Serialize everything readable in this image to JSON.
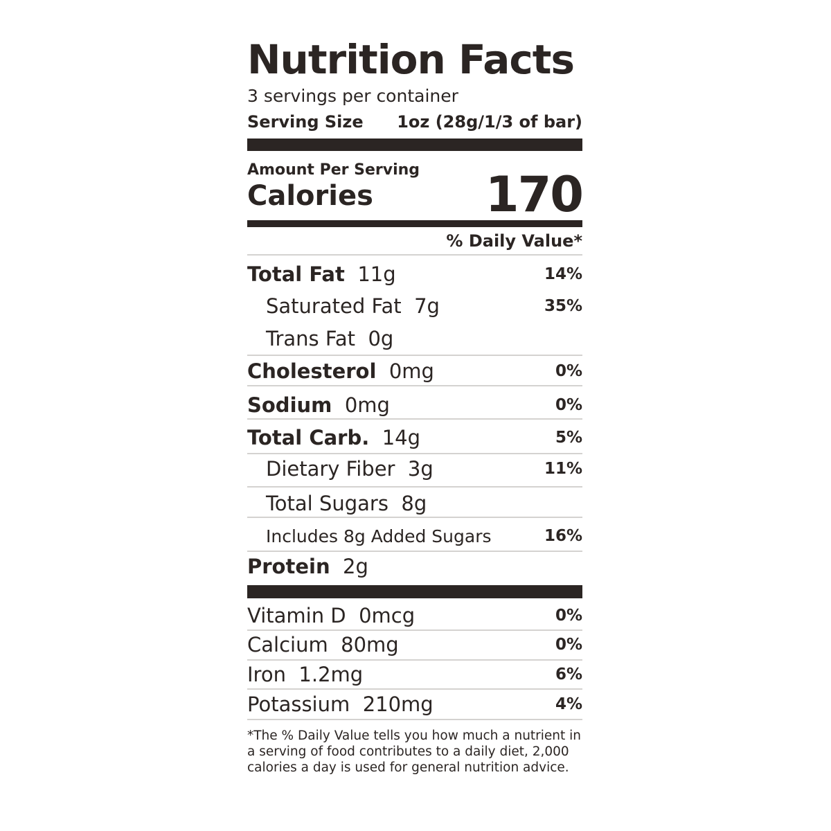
{
  "title": "Nutrition Facts",
  "servings_per_container": "3 servings per container",
  "serving_size_label": "Serving Size",
  "serving_size_value": "1oz (28g/1/3 of bar)",
  "amount_per_serving": "Amount Per Serving",
  "calories_label": "Calories",
  "calories_value": "170",
  "daily_value_header": "% Daily Value*",
  "nutrients": [
    {
      "name": "Total Fat",
      "amount": "11g",
      "dv": "14%"
    },
    {
      "name": "Saturated Fat",
      "amount": "7g",
      "dv": "35%"
    },
    {
      "name": "Trans Fat",
      "amount": "0g",
      "dv": ""
    },
    {
      "name": "Cholesterol",
      "amount": "0mg",
      "dv": "0%"
    },
    {
      "name": "Sodium",
      "amount": "0mg",
      "dv": "0%"
    },
    {
      "name": "Total Carb.",
      "amount": "14g",
      "dv": "5%"
    },
    {
      "name": "Dietary Fiber",
      "amount": "3g",
      "dv": "11%"
    },
    {
      "name": "Total Sugars",
      "amount": "8g",
      "dv": ""
    },
    {
      "name": "Includes 8g Added Sugars",
      "amount": "",
      "dv": "16%"
    },
    {
      "name": "Protein",
      "amount": "2g",
      "dv": ""
    }
  ],
  "vitamins": [
    {
      "name": "Vitamin D",
      "amount": "0mcg",
      "dv": "0%"
    },
    {
      "name": "Calcium",
      "amount": "80mg",
      "dv": "0%"
    },
    {
      "name": "Iron",
      "amount": "1.2mg",
      "dv": "6%"
    },
    {
      "name": "Potassium",
      "amount": "210mg",
      "dv": "4%"
    }
  ],
  "footnote": "*The % Daily Value tells you how much a nutrient in a serving of food contributes to a daily diet, 2,000 calories a day is used for general nutrition advice.",
  "colors": {
    "text": "#2b2523",
    "divider": "#d4d2d0"
  }
}
